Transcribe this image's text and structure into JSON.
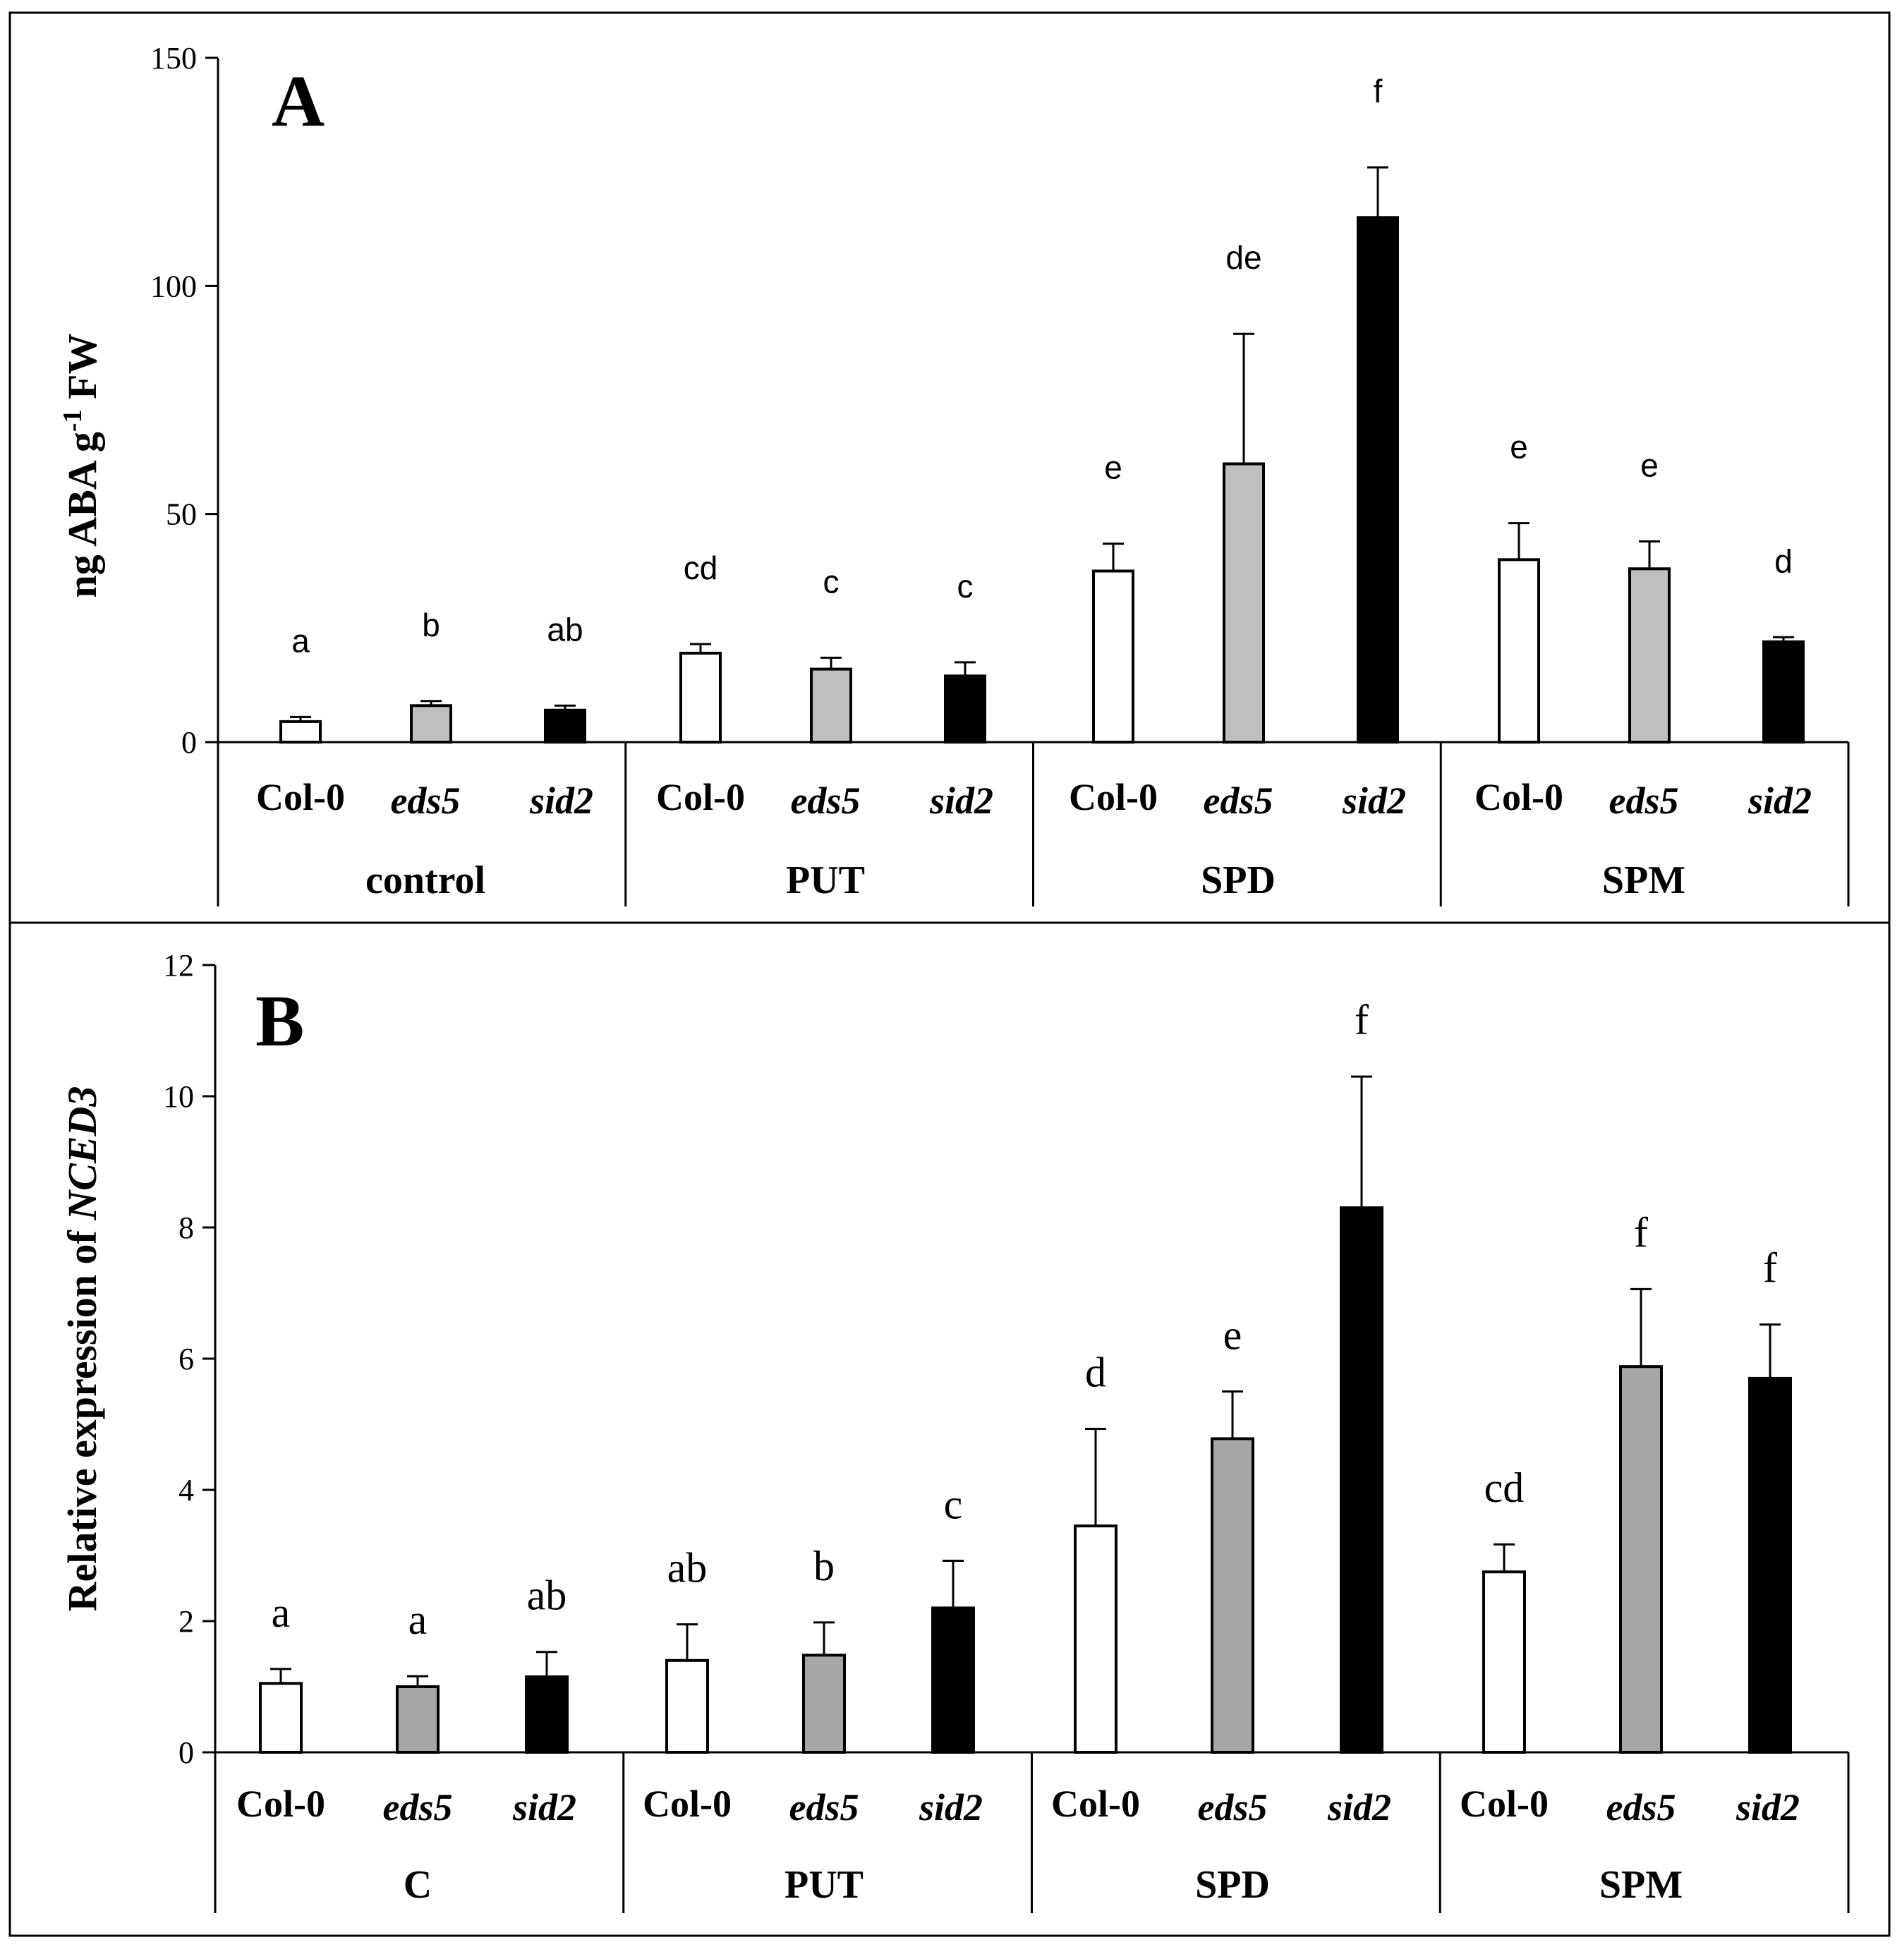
{
  "chart_data": [
    {
      "type": "bar",
      "panel": "A",
      "ylabel_parts": {
        "base": "ng ABA  g",
        "sup": "-1",
        "tail": " FW"
      },
      "ylim": [
        0,
        150
      ],
      "yticks": [
        "0",
        "50",
        "100",
        "150"
      ],
      "genotypes": [
        "Col-0",
        "eds5",
        "sid2"
      ],
      "groups": [
        {
          "name": "control",
          "genotypes": [
            "Col-0",
            "eds5",
            "sid2"
          ],
          "values": [
            4.5,
            8.0,
            7.0
          ],
          "errors": [
            1.0,
            1.0,
            1.0
          ],
          "letters": [
            "a",
            "b",
            "ab"
          ]
        },
        {
          "name": "PUT",
          "genotypes": [
            "Col-0",
            "eds5",
            "sid2"
          ],
          "values": [
            19.5,
            16.0,
            14.5
          ],
          "errors": [
            2.0,
            2.5,
            3.0
          ],
          "letters": [
            "cd",
            "c",
            "c"
          ]
        },
        {
          "name": "SPD",
          "genotypes": [
            "Col-0",
            "eds5",
            "sid2"
          ],
          "values": [
            37.5,
            61.0,
            115.0
          ],
          "errors": [
            6.0,
            28.5,
            11.0
          ],
          "letters": [
            "e",
            "de",
            "f"
          ]
        },
        {
          "name": "SPM",
          "genotypes": [
            "Col-0",
            "eds5",
            "sid2"
          ],
          "values": [
            40.0,
            38.0,
            22.0
          ],
          "errors": [
            8.0,
            6.0,
            1.0
          ],
          "letters": [
            "e",
            "e",
            "d"
          ]
        }
      ],
      "colors": {
        "Col-0": "#ffffff",
        "eds5": "#bfbfbf",
        "sid2": "#000000"
      }
    },
    {
      "type": "bar",
      "panel": "B",
      "ylabel_parts": {
        "base": "Relative expression of ",
        "italic": "NCED3"
      },
      "ylim": [
        0,
        12
      ],
      "yticks": [
        "0",
        "2",
        "4",
        "6",
        "8",
        "10",
        "12"
      ],
      "genotypes": [
        "Col-0",
        "eds5",
        "sid2"
      ],
      "groups": [
        {
          "name": "C",
          "genotypes": [
            "Col-0",
            "eds5",
            "sid2"
          ],
          "values": [
            1.05,
            1.0,
            1.15
          ],
          "errors": [
            0.22,
            0.16,
            0.38
          ],
          "letters": [
            "a",
            "a",
            "ab"
          ]
        },
        {
          "name": "PUT",
          "genotypes": [
            "Col-0",
            "eds5",
            "sid2"
          ],
          "values": [
            1.4,
            1.48,
            2.2
          ],
          "errors": [
            0.55,
            0.5,
            0.72
          ],
          "letters": [
            "ab",
            "b",
            "c"
          ]
        },
        {
          "name": "SPD",
          "genotypes": [
            "Col-0",
            "eds5",
            "sid2"
          ],
          "values": [
            3.45,
            4.78,
            8.3
          ],
          "errors": [
            1.48,
            0.72,
            2.0
          ],
          "letters": [
            "d",
            "e",
            "f"
          ]
        },
        {
          "name": "SPM",
          "genotypes": [
            "Col-0",
            "eds5",
            "sid2"
          ],
          "values": [
            2.75,
            5.88,
            5.7
          ],
          "errors": [
            0.42,
            1.18,
            0.82
          ],
          "letters": [
            "cd",
            "f",
            "f"
          ]
        }
      ],
      "colors": {
        "Col-0": "#ffffff",
        "eds5": "#a6a6a6",
        "sid2": "#000000"
      }
    }
  ]
}
